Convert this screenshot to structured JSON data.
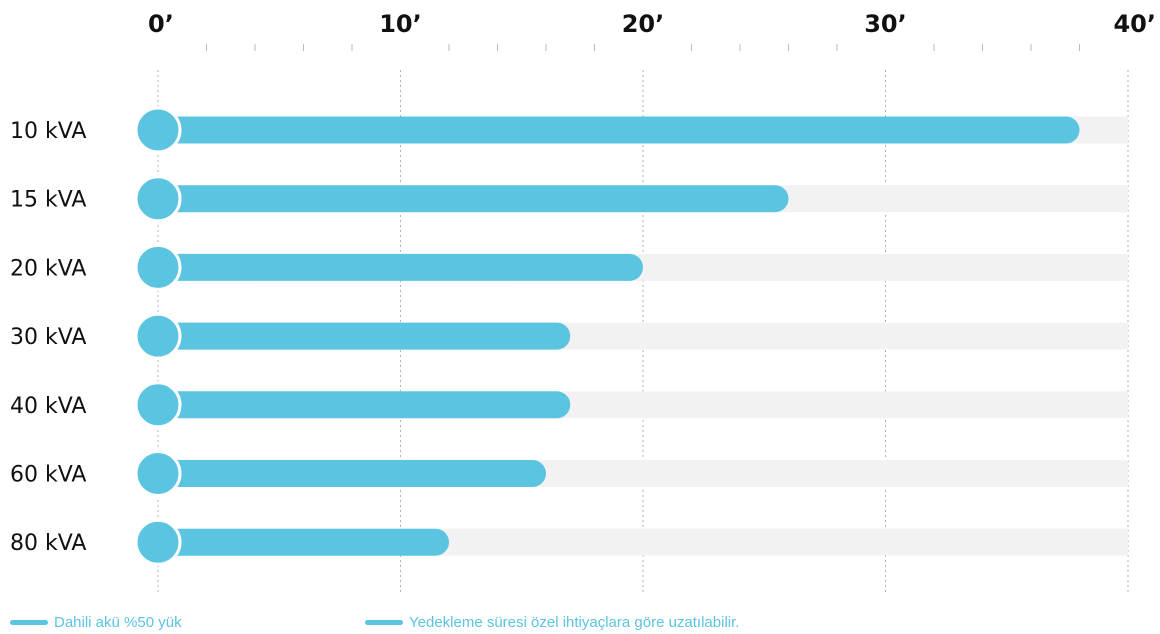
{
  "chart_data": {
    "type": "bar",
    "orientation": "horizontal",
    "categories": [
      "10 kVA",
      "15 kVA",
      "20 kVA",
      "30 kVA",
      "40 kVA",
      "60 kVA",
      "80 kVA"
    ],
    "values": [
      38,
      26,
      20,
      17,
      17,
      16,
      12
    ],
    "xlim": [
      0,
      40
    ],
    "x_ticks": [
      0,
      10,
      20,
      30,
      40
    ],
    "x_tick_labels": [
      "0’",
      "10’",
      "20’",
      "30’",
      "40’"
    ],
    "minor_ticks_per_major": 5,
    "grid": "vertical dotted at major ticks",
    "tick_position": "top",
    "bar_color": "#5BC4E1",
    "track_color": "#F2F2F2",
    "grid_color": "#B0B0B0"
  },
  "legend": {
    "items": [
      {
        "label": "Dahili akü %50 yük"
      },
      {
        "label": "Yedekleme süresi özel ihtiyaçlara göre uzatılabilir."
      }
    ]
  }
}
